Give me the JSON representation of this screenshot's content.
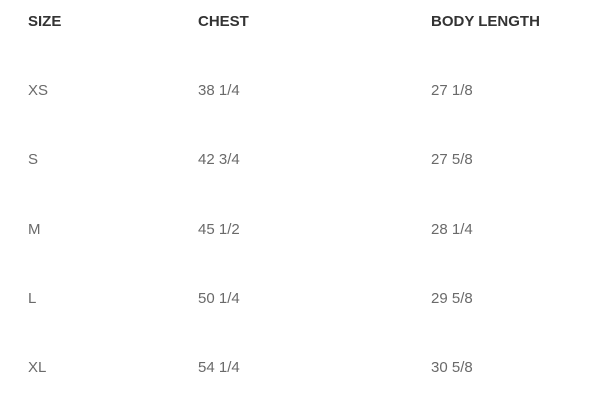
{
  "table": {
    "headers": [
      "SIZE",
      "CHEST",
      "BODY LENGTH"
    ],
    "rows": [
      [
        "XS",
        "38 1/4",
        "27 1/8"
      ],
      [
        "S",
        "42 3/4",
        "27 5/8"
      ],
      [
        "M",
        "45 1/2",
        "28 1/4"
      ],
      [
        "L",
        "50 1/4",
        "29 5/8"
      ],
      [
        "XL",
        "54 1/4",
        "30 5/8"
      ]
    ]
  },
  "colors": {
    "header_text": "#333333",
    "cell_text": "#6a6a6a",
    "background": "#ffffff"
  }
}
